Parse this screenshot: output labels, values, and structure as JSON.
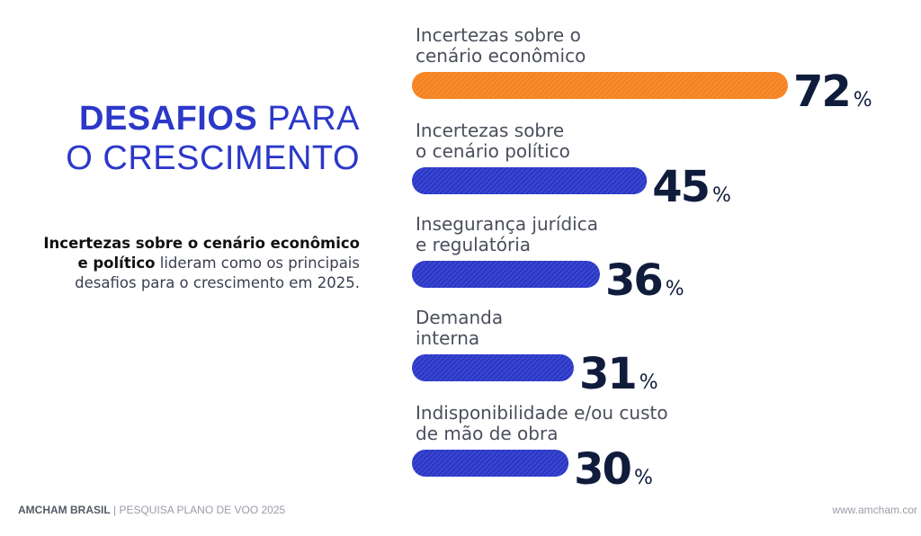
{
  "title": {
    "strong": "DESAFIOS",
    "light_1": "PARA",
    "light_2": "O CRESCIMENTO"
  },
  "summary": {
    "strong": "Incertezas sobre o cenário econômico e político",
    "rest": "lideram como os principais desafios para o crescimento em 2025."
  },
  "colors": {
    "highlight": "#f58220",
    "primary": "#2b38c8",
    "value_text": "#101c3c"
  },
  "chart_data": {
    "type": "bar",
    "orientation": "horizontal",
    "categories": [
      "Incertezas sobre o\ncenário econômico",
      "Incertezas sobre\no cenário político",
      "Insegurança jurídica\ne regulatória",
      "Demanda\ninterna",
      "Indisponibilidade e/ou custo\nde mão de obra"
    ],
    "values": [
      72,
      45,
      36,
      31,
      30
    ],
    "unit": "%",
    "highlight_index": 0
  },
  "footer": {
    "brand": "AMCHAM BRASIL",
    "separator": " | ",
    "survey": "PESQUISA PLANO DE VOO 2025",
    "website": "www.amcham.cor"
  }
}
